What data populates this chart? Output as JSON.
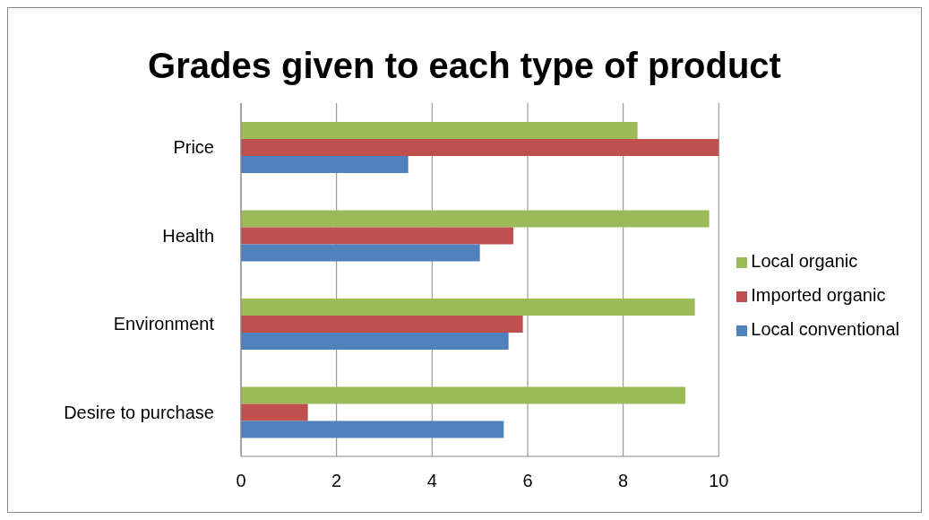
{
  "chart_data": {
    "type": "bar",
    "orientation": "horizontal",
    "title": "Grades given to each type of product",
    "categories": [
      "Price",
      "Health",
      "Environment",
      "Desire to purchase"
    ],
    "series": [
      {
        "name": "Local organic",
        "color": "#9bbb59",
        "values": [
          8.3,
          9.8,
          9.5,
          9.3
        ]
      },
      {
        "name": "Imported organic",
        "color": "#c0504d",
        "values": [
          10,
          5.7,
          5.9,
          1.4
        ]
      },
      {
        "name": "Local conventional",
        "color": "#4f81bd",
        "values": [
          3.5,
          5,
          5.6,
          5.5
        ]
      }
    ],
    "xlim": [
      0,
      10
    ],
    "xticks": [
      0,
      2,
      4,
      6,
      8,
      10
    ],
    "grid": "x",
    "legend": "right"
  }
}
